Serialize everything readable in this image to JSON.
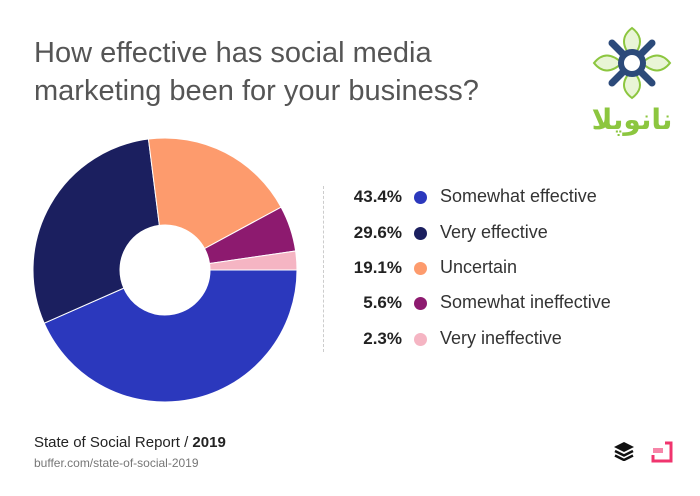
{
  "title": "How effective has social media marketing been for your business?",
  "chart_data": {
    "type": "pie",
    "donut": true,
    "title": "How effective has social media marketing been for your business?",
    "categories": [
      "Somewhat effective",
      "Very effective",
      "Uncertain",
      "Somewhat ineffective",
      "Very ineffective"
    ],
    "values": [
      43.4,
      29.6,
      19.1,
      5.6,
      2.3
    ],
    "labels": [
      "43.4%",
      "29.6%",
      "19.1%",
      "5.6%",
      "2.3%"
    ],
    "colors": [
      "#2b38bd",
      "#1b1f5f",
      "#fd9b6d",
      "#8d1a6f",
      "#f5b5c3"
    ],
    "legend": "right"
  },
  "footer": {
    "report": "State of Social Report / ",
    "year": "2019",
    "url": "buffer.com/state-of-social-2019"
  },
  "logo": {
    "text": "نانوپلا"
  }
}
